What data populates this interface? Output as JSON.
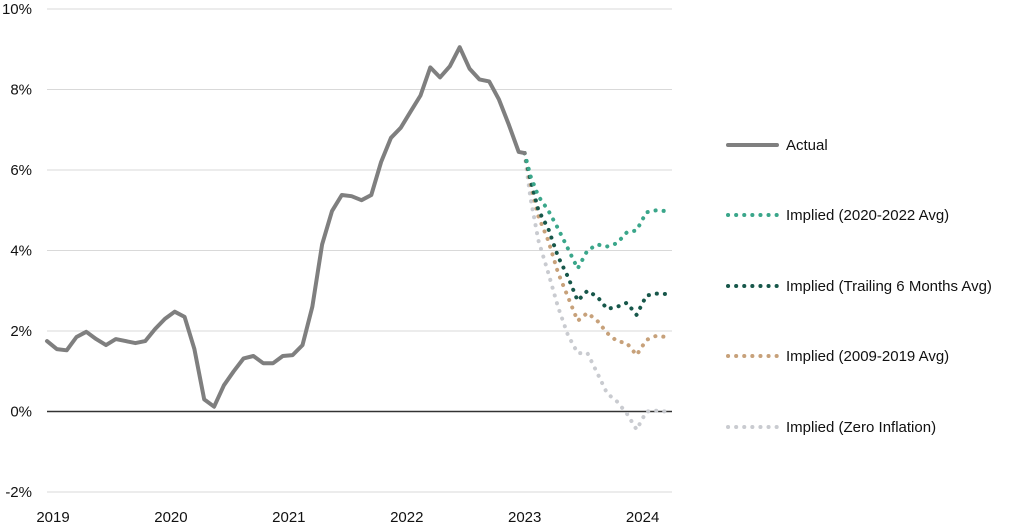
{
  "chart_data": {
    "type": "line",
    "title": "",
    "xlabel": "",
    "ylabel": "",
    "xlim": [
      2019.0,
      2024.3
    ],
    "ylim": [
      -2,
      10
    ],
    "x_ticks": [
      {
        "value": 2019,
        "label": "2019"
      },
      {
        "value": 2020,
        "label": "2020"
      },
      {
        "value": 2021,
        "label": "2021"
      },
      {
        "value": 2022,
        "label": "2022"
      },
      {
        "value": 2023,
        "label": "2023"
      },
      {
        "value": 2024,
        "label": "2024"
      }
    ],
    "y_ticks": [
      {
        "value": 10,
        "label": "10%"
      },
      {
        "value": 8,
        "label": "8%"
      },
      {
        "value": 6,
        "label": "6%"
      },
      {
        "value": 4,
        "label": "4%"
      },
      {
        "value": 2,
        "label": "2%"
      },
      {
        "value": 0,
        "label": "0%"
      },
      {
        "value": -2,
        "label": "-2%"
      }
    ],
    "grid": "horizontal",
    "legend_position": "right",
    "series": [
      {
        "name": "Actual",
        "color": "#7f7f7f",
        "style": "solid",
        "points": [
          [
            2019.0,
            1.75
          ],
          [
            2019.083,
            1.55
          ],
          [
            2019.167,
            1.52
          ],
          [
            2019.25,
            1.85
          ],
          [
            2019.333,
            1.98
          ],
          [
            2019.417,
            1.8
          ],
          [
            2019.5,
            1.65
          ],
          [
            2019.583,
            1.8
          ],
          [
            2019.667,
            1.75
          ],
          [
            2019.75,
            1.7
          ],
          [
            2019.833,
            1.75
          ],
          [
            2019.917,
            2.05
          ],
          [
            2020.0,
            2.3
          ],
          [
            2020.083,
            2.48
          ],
          [
            2020.167,
            2.35
          ],
          [
            2020.25,
            1.55
          ],
          [
            2020.333,
            0.3
          ],
          [
            2020.417,
            0.12
          ],
          [
            2020.5,
            0.65
          ],
          [
            2020.583,
            1.0
          ],
          [
            2020.667,
            1.32
          ],
          [
            2020.75,
            1.38
          ],
          [
            2020.833,
            1.2
          ],
          [
            2020.917,
            1.2
          ],
          [
            2021.0,
            1.38
          ],
          [
            2021.083,
            1.4
          ],
          [
            2021.167,
            1.65
          ],
          [
            2021.25,
            2.6
          ],
          [
            2021.333,
            4.15
          ],
          [
            2021.417,
            4.98
          ],
          [
            2021.5,
            5.38
          ],
          [
            2021.583,
            5.35
          ],
          [
            2021.667,
            5.25
          ],
          [
            2021.75,
            5.38
          ],
          [
            2021.833,
            6.2
          ],
          [
            2021.917,
            6.8
          ],
          [
            2022.0,
            7.05
          ],
          [
            2022.083,
            7.45
          ],
          [
            2022.167,
            7.85
          ],
          [
            2022.25,
            8.55
          ],
          [
            2022.333,
            8.3
          ],
          [
            2022.417,
            8.58
          ],
          [
            2022.5,
            9.05
          ],
          [
            2022.583,
            8.52
          ],
          [
            2022.667,
            8.25
          ],
          [
            2022.75,
            8.2
          ],
          [
            2022.833,
            7.75
          ],
          [
            2022.917,
            7.12
          ],
          [
            2023.0,
            6.45
          ],
          [
            2023.05,
            6.42
          ]
        ]
      },
      {
        "name": "Implied (2020-2022 Avg)",
        "color": "#3aa68a",
        "style": "dotted",
        "points": [
          [
            2023.05,
            6.42
          ],
          [
            2023.1,
            5.85
          ],
          [
            2023.167,
            5.35
          ],
          [
            2023.25,
            5.0
          ],
          [
            2023.333,
            4.55
          ],
          [
            2023.417,
            4.05
          ],
          [
            2023.5,
            3.55
          ],
          [
            2023.583,
            4.0
          ],
          [
            2023.667,
            4.15
          ],
          [
            2023.75,
            4.1
          ],
          [
            2023.833,
            4.18
          ],
          [
            2023.917,
            4.45
          ],
          [
            2024.0,
            4.5
          ],
          [
            2024.083,
            4.95
          ],
          [
            2024.167,
            5.0
          ],
          [
            2024.25,
            4.98
          ]
        ]
      },
      {
        "name": "Implied (Trailing 6 Months Avg)",
        "color": "#17574a",
        "style": "dotted",
        "points": [
          [
            2023.05,
            6.42
          ],
          [
            2023.1,
            5.75
          ],
          [
            2023.167,
            5.0
          ],
          [
            2023.25,
            4.55
          ],
          [
            2023.333,
            3.85
          ],
          [
            2023.417,
            3.35
          ],
          [
            2023.5,
            2.75
          ],
          [
            2023.583,
            3.0
          ],
          [
            2023.667,
            2.85
          ],
          [
            2023.75,
            2.55
          ],
          [
            2023.833,
            2.6
          ],
          [
            2023.917,
            2.7
          ],
          [
            2024.0,
            2.4
          ],
          [
            2024.083,
            2.88
          ],
          [
            2024.167,
            2.93
          ],
          [
            2024.25,
            2.92
          ]
        ]
      },
      {
        "name": "Implied (2009-2019 Avg)",
        "color": "#c7a17a",
        "style": "dotted",
        "points": [
          [
            2023.05,
            6.42
          ],
          [
            2023.1,
            5.65
          ],
          [
            2023.167,
            4.85
          ],
          [
            2023.25,
            4.25
          ],
          [
            2023.333,
            3.45
          ],
          [
            2023.417,
            2.85
          ],
          [
            2023.5,
            2.25
          ],
          [
            2023.583,
            2.45
          ],
          [
            2023.667,
            2.25
          ],
          [
            2023.75,
            1.95
          ],
          [
            2023.833,
            1.75
          ],
          [
            2023.917,
            1.7
          ],
          [
            2024.0,
            1.4
          ],
          [
            2024.083,
            1.78
          ],
          [
            2024.167,
            1.88
          ],
          [
            2024.25,
            1.85
          ]
        ]
      },
      {
        "name": "Implied (Zero Inflation)",
        "color": "#c9cbd0",
        "style": "dotted",
        "points": [
          [
            2023.05,
            6.42
          ],
          [
            2023.1,
            5.3
          ],
          [
            2023.167,
            4.25
          ],
          [
            2023.25,
            3.45
          ],
          [
            2023.333,
            2.6
          ],
          [
            2023.417,
            1.9
          ],
          [
            2023.5,
            1.45
          ],
          [
            2023.583,
            1.45
          ],
          [
            2023.667,
            0.95
          ],
          [
            2023.75,
            0.45
          ],
          [
            2023.833,
            0.25
          ],
          [
            2023.917,
            -0.05
          ],
          [
            2024.0,
            -0.45
          ],
          [
            2024.083,
            0.0
          ],
          [
            2024.167,
            0.02
          ],
          [
            2024.25,
            0.0
          ]
        ]
      }
    ]
  }
}
